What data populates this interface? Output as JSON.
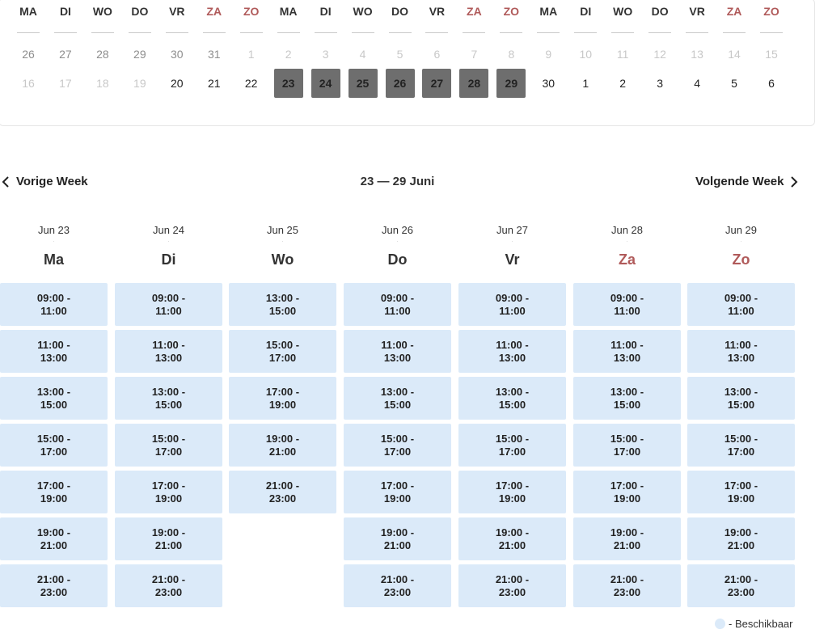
{
  "strip": {
    "headers": [
      {
        "label": "MA",
        "weekend": false
      },
      {
        "label": "DI",
        "weekend": false
      },
      {
        "label": "WO",
        "weekend": false
      },
      {
        "label": "DO",
        "weekend": false
      },
      {
        "label": "VR",
        "weekend": false
      },
      {
        "label": "ZA",
        "weekend": true
      },
      {
        "label": "ZO",
        "weekend": true
      },
      {
        "label": "MA",
        "weekend": false
      },
      {
        "label": "DI",
        "weekend": false
      },
      {
        "label": "WO",
        "weekend": false
      },
      {
        "label": "DO",
        "weekend": false
      },
      {
        "label": "VR",
        "weekend": false
      },
      {
        "label": "ZA",
        "weekend": true
      },
      {
        "label": "ZO",
        "weekend": true
      },
      {
        "label": "MA",
        "weekend": false
      },
      {
        "label": "DI",
        "weekend": false
      },
      {
        "label": "WO",
        "weekend": false
      },
      {
        "label": "DO",
        "weekend": false
      },
      {
        "label": "VR",
        "weekend": false
      },
      {
        "label": "ZA",
        "weekend": true
      },
      {
        "label": "ZO",
        "weekend": true
      }
    ],
    "row1": [
      {
        "d": "26",
        "faint": false
      },
      {
        "d": "27",
        "faint": false
      },
      {
        "d": "28",
        "faint": false
      },
      {
        "d": "29",
        "faint": false
      },
      {
        "d": "30",
        "faint": false
      },
      {
        "d": "31",
        "faint": false
      },
      {
        "d": "1",
        "faint": true
      },
      {
        "d": "2",
        "faint": true
      },
      {
        "d": "3",
        "faint": true
      },
      {
        "d": "4",
        "faint": true
      },
      {
        "d": "5",
        "faint": true
      },
      {
        "d": "6",
        "faint": true
      },
      {
        "d": "7",
        "faint": true
      },
      {
        "d": "8",
        "faint": true
      },
      {
        "d": "9",
        "faint": true
      },
      {
        "d": "10",
        "faint": true
      },
      {
        "d": "11",
        "faint": true
      },
      {
        "d": "12",
        "faint": true
      },
      {
        "d": "13",
        "faint": true
      },
      {
        "d": "14",
        "faint": true
      },
      {
        "d": "15",
        "faint": true
      }
    ],
    "row2": [
      {
        "d": "16",
        "state": "faint"
      },
      {
        "d": "17",
        "state": "faint"
      },
      {
        "d": "18",
        "state": "faint"
      },
      {
        "d": "19",
        "state": "faint"
      },
      {
        "d": "20",
        "state": "normal"
      },
      {
        "d": "21",
        "state": "normal"
      },
      {
        "d": "22",
        "state": "normal"
      },
      {
        "d": "23",
        "state": "selected"
      },
      {
        "d": "24",
        "state": "selected"
      },
      {
        "d": "25",
        "state": "selected"
      },
      {
        "d": "26",
        "state": "selected"
      },
      {
        "d": "27",
        "state": "selected"
      },
      {
        "d": "28",
        "state": "selected"
      },
      {
        "d": "29",
        "state": "selected"
      },
      {
        "d": "30",
        "state": "normal"
      },
      {
        "d": "1",
        "state": "normal"
      },
      {
        "d": "2",
        "state": "normal"
      },
      {
        "d": "3",
        "state": "normal"
      },
      {
        "d": "4",
        "state": "normal"
      },
      {
        "d": "5",
        "state": "normal"
      },
      {
        "d": "6",
        "state": "normal"
      }
    ]
  },
  "nav": {
    "prev_label": "Vorige Week",
    "next_label": "Volgende Week",
    "range": "23 — 29 Juni"
  },
  "days": [
    {
      "date": "Jun 23",
      "name": "Ma",
      "weekend": false,
      "slots": [
        [
          "09:00 -",
          "11:00"
        ],
        [
          "11:00 -",
          "13:00"
        ],
        [
          "13:00 -",
          "15:00"
        ],
        [
          "15:00 -",
          "17:00"
        ],
        [
          "17:00 -",
          "19:00"
        ],
        [
          "19:00 -",
          "21:00"
        ],
        [
          "21:00 -",
          "23:00"
        ]
      ]
    },
    {
      "date": "Jun 24",
      "name": "Di",
      "weekend": false,
      "slots": [
        [
          "09:00 -",
          "11:00"
        ],
        [
          "11:00 -",
          "13:00"
        ],
        [
          "13:00 -",
          "15:00"
        ],
        [
          "15:00 -",
          "17:00"
        ],
        [
          "17:00 -",
          "19:00"
        ],
        [
          "19:00 -",
          "21:00"
        ],
        [
          "21:00 -",
          "23:00"
        ]
      ]
    },
    {
      "date": "Jun 25",
      "name": "Wo",
      "weekend": false,
      "slots": [
        [
          "13:00 -",
          "15:00"
        ],
        [
          "15:00 -",
          "17:00"
        ],
        [
          "17:00 -",
          "19:00"
        ],
        [
          "19:00 -",
          "21:00"
        ],
        [
          "21:00 -",
          "23:00"
        ]
      ]
    },
    {
      "date": "Jun 26",
      "name": "Do",
      "weekend": false,
      "slots": [
        [
          "09:00 -",
          "11:00"
        ],
        [
          "11:00 -",
          "13:00"
        ],
        [
          "13:00 -",
          "15:00"
        ],
        [
          "15:00 -",
          "17:00"
        ],
        [
          "17:00 -",
          "19:00"
        ],
        [
          "19:00 -",
          "21:00"
        ],
        [
          "21:00 -",
          "23:00"
        ]
      ]
    },
    {
      "date": "Jun 27",
      "name": "Vr",
      "weekend": false,
      "slots": [
        [
          "09:00 -",
          "11:00"
        ],
        [
          "11:00 -",
          "13:00"
        ],
        [
          "13:00 -",
          "15:00"
        ],
        [
          "15:00 -",
          "17:00"
        ],
        [
          "17:00 -",
          "19:00"
        ],
        [
          "19:00 -",
          "21:00"
        ],
        [
          "21:00 -",
          "23:00"
        ]
      ]
    },
    {
      "date": "Jun 28",
      "name": "Za",
      "weekend": true,
      "slots": [
        [
          "09:00 -",
          "11:00"
        ],
        [
          "11:00 -",
          "13:00"
        ],
        [
          "13:00 -",
          "15:00"
        ],
        [
          "15:00 -",
          "17:00"
        ],
        [
          "17:00 -",
          "19:00"
        ],
        [
          "19:00 -",
          "21:00"
        ],
        [
          "21:00 -",
          "23:00"
        ]
      ]
    },
    {
      "date": "Jun 29",
      "name": "Zo",
      "weekend": true,
      "slots": [
        [
          "09:00 -",
          "11:00"
        ],
        [
          "11:00 -",
          "13:00"
        ],
        [
          "13:00 -",
          "15:00"
        ],
        [
          "15:00 -",
          "17:00"
        ],
        [
          "17:00 -",
          "19:00"
        ],
        [
          "19:00 -",
          "21:00"
        ],
        [
          "21:00 -",
          "23:00"
        ]
      ]
    }
  ],
  "legend": {
    "label": "- Beschikbaar",
    "color": "#dbeaf9"
  },
  "colors": {
    "weekend": "#b05a5a",
    "selected": "#6e6e6e",
    "available": "#dbeaf9"
  }
}
